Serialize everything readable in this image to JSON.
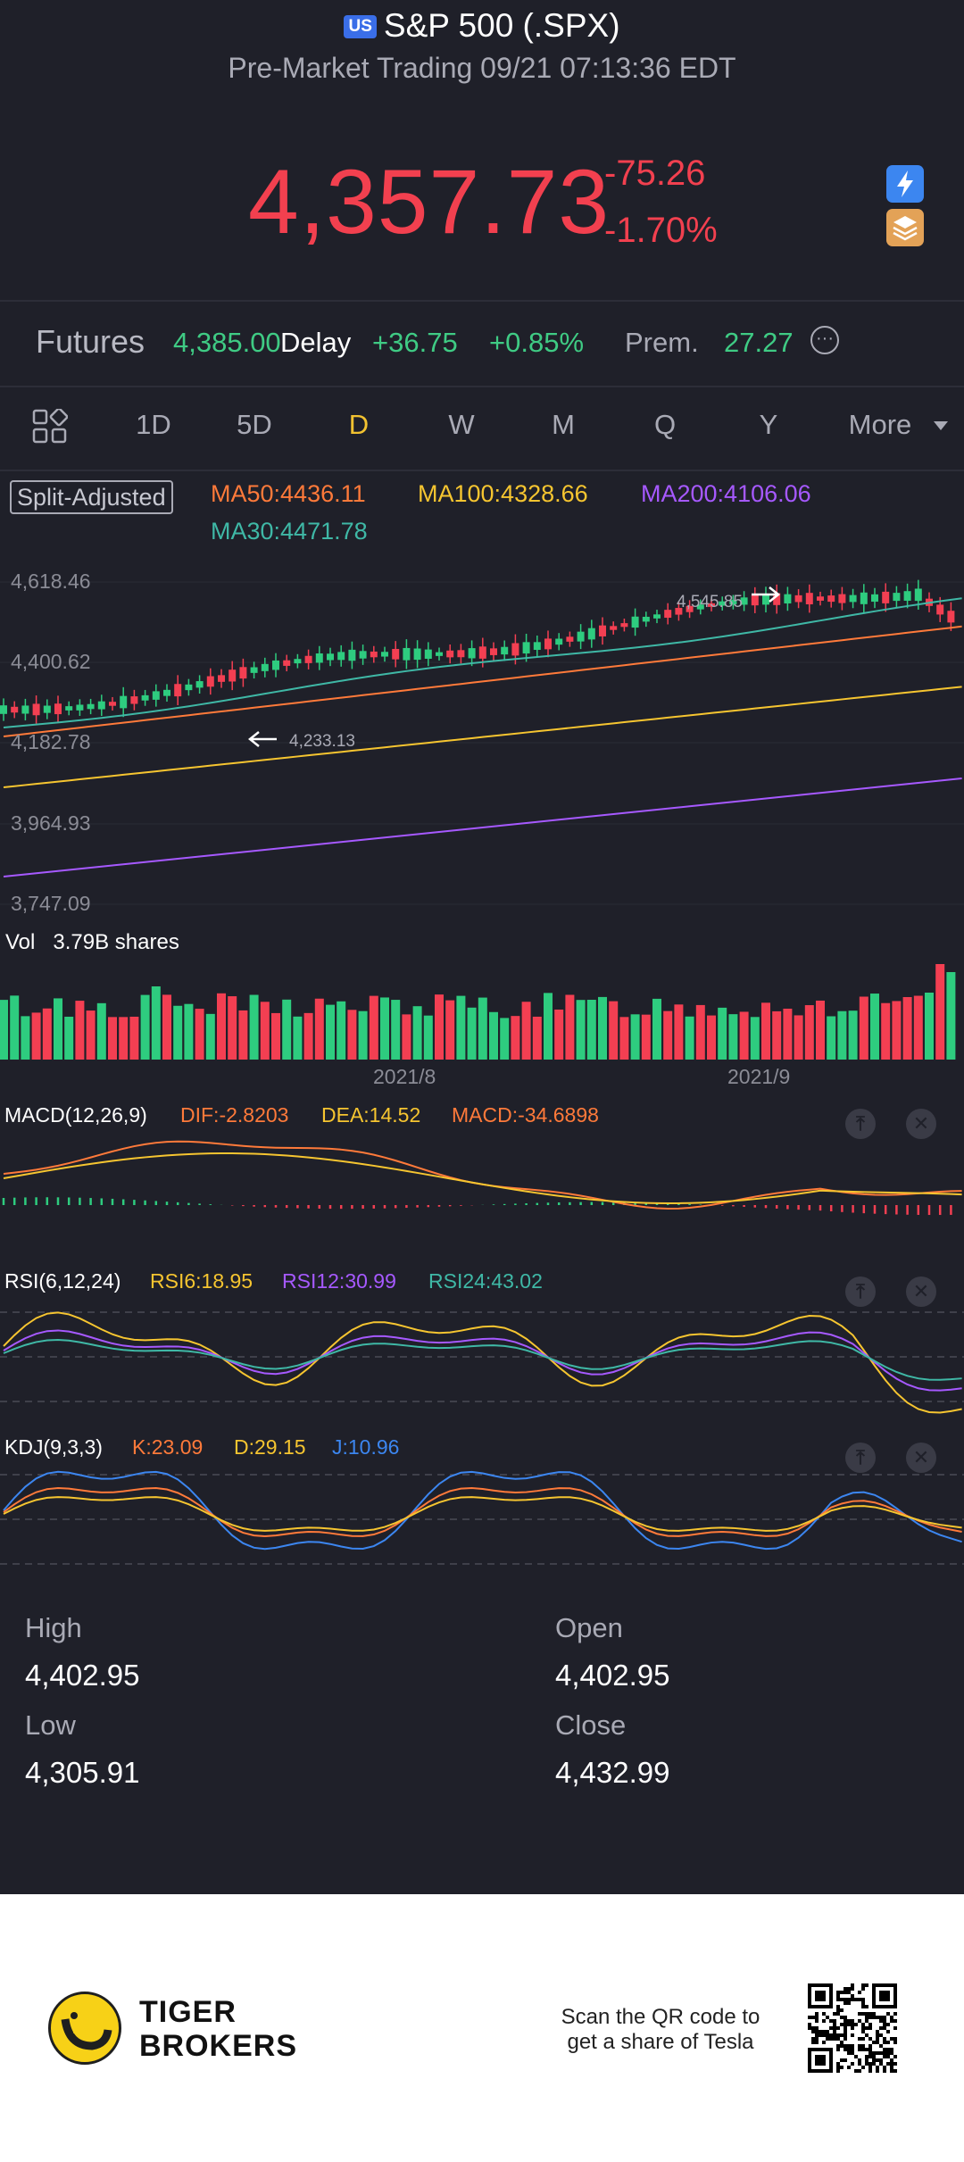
{
  "header": {
    "market_badge": "US",
    "title": "S&P 500 (.SPX)",
    "subtitle": "Pre-Market Trading 09/21 07:13:36 EDT",
    "price": "4,357.73",
    "change": "-75.26",
    "change_pct": "-1.70%",
    "icon_right_top": "lightning-icon",
    "icon_right_bottom": "layers-icon"
  },
  "futures": {
    "label": "Futures",
    "price": "4,385.00",
    "delay": "Delay",
    "change": "+36.75",
    "change_pct": "+0.85%",
    "premium_label": "Prem.",
    "premium_value": "27.27",
    "more_icon": "ellipsis-icon"
  },
  "tabs": {
    "grid_icon": "grid-icon",
    "items": [
      "1D",
      "5D",
      "D",
      "W",
      "M",
      "Q",
      "Y"
    ],
    "active": "D",
    "more": "More"
  },
  "price_chart": {
    "split_label": "Split-Adjusted",
    "ma50": "MA50:4436.11",
    "ma100": "MA100:4328.66",
    "ma200": "MA200:4106.06",
    "ma30": "MA30:4471.78",
    "y_labels": [
      "4,618.46",
      "4,400.62",
      "4,182.78",
      "3,964.93",
      "3,747.09"
    ],
    "high_marker": "4,545.85",
    "low_marker": "4,233.13",
    "colors": {
      "up": "#2ecc7f",
      "down": "#f33f52",
      "ma30": "#3fb8a6",
      "ma50": "#ff7a3a",
      "ma100": "#f6c530",
      "ma200": "#a659ff"
    }
  },
  "volume": {
    "label": "Vol",
    "value": "3.79B shares",
    "x_labels": [
      "2021/8",
      "2021/9"
    ]
  },
  "macd": {
    "name": "MACD(12,26,9)",
    "dif": "DIF:-2.8203",
    "dea": "DEA:14.52",
    "macd": "MACD:-34.6898"
  },
  "rsi": {
    "name": "RSI(6,12,24)",
    "rsi6": "RSI6:18.95",
    "rsi12": "RSI12:30.99",
    "rsi24": "RSI24:43.02"
  },
  "kdj": {
    "name": "KDJ(9,3,3)",
    "k": "K:23.09",
    "d": "D:29.15",
    "j": "J:10.96"
  },
  "indicator_buttons": {
    "pin_icon": "pin-top-icon",
    "close_icon": "close-icon",
    "pin_glyph": "⤒",
    "close_glyph": "✕"
  },
  "stats": {
    "high_label": "High",
    "high": "4,402.95",
    "open_label": "Open",
    "open": "4,402.95",
    "low_label": "Low",
    "low": "4,305.91",
    "close_label": "Close",
    "close": "4,432.99"
  },
  "footer": {
    "brand_line1": "TIGER",
    "brand_line2": "BROKERS",
    "qr_text_line1": "Scan the QR code to",
    "qr_text_line2": "get a share of Tesla",
    "logo_icon": "tiger-logo-icon",
    "qr_icon": "qr-code-icon"
  }
}
